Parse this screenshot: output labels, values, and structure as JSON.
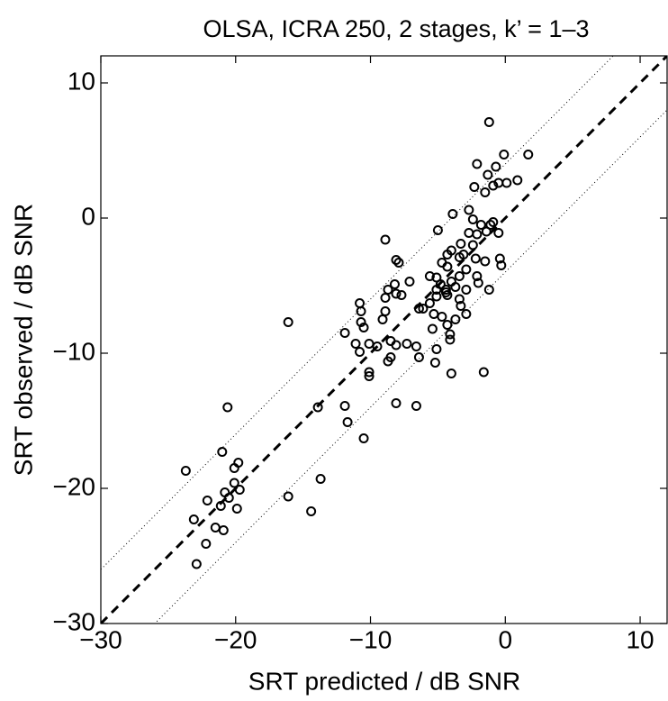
{
  "chart_data": {
    "type": "scatter",
    "title": "OLSA, ICRA 250, 2 stages, k’ = 1–3",
    "xlabel": "SRT predicted / dB SNR",
    "ylabel": "SRT observed / dB SNR",
    "color": "#000000",
    "xlim": [
      -30,
      12
    ],
    "ylim": [
      -30,
      12
    ],
    "xticks": [
      {
        "value": -30,
        "label": "−30"
      },
      {
        "value": -20,
        "label": "−20"
      },
      {
        "value": -10,
        "label": "−10"
      },
      0,
      10
    ],
    "yticks": [
      {
        "value": -30,
        "label": "−30"
      },
      {
        "value": -20,
        "label": "−20"
      },
      {
        "value": -10,
        "label": "−10"
      },
      0,
      10
    ],
    "reference_lines": [
      {
        "offset": 0,
        "style": "dashed"
      },
      {
        "offset": 4,
        "style": "dotted"
      },
      {
        "offset": -4,
        "style": "dotted"
      }
    ],
    "x": [
      -1.2,
      -0.1,
      1.7,
      -2.1,
      -0.7,
      -1.3,
      -2.3,
      -1.5,
      -0.9,
      -0.5,
      0.1,
      0.9,
      -2.7,
      -3.9,
      -2.4,
      -0.9,
      -1.1,
      -1.8,
      -1.4,
      -2.7,
      -5.0,
      -0.5,
      -2.1,
      -3.3,
      -2.4,
      -4.0,
      -3.1,
      -4.3,
      -3.4,
      -0.4,
      -0.3,
      -2.2,
      -1.5,
      -4.7,
      -4.3,
      -2.9,
      -8.1,
      -7.9,
      -8.9,
      -5.6,
      -5.1,
      -3.4,
      -2.1,
      -4.0,
      -3.7,
      -4.8,
      -5.1,
      -4.4,
      -4.3,
      -4.4,
      -3.4,
      -5.1,
      -1.2,
      -2.0,
      -2.9,
      -7.1,
      -8.2,
      -8.7,
      -8.9,
      -7.7,
      -8.1,
      -5.6,
      -6.1,
      -6.4,
      -10.8,
      -10.7,
      -8.9,
      -9.1,
      -5.3,
      -4.7,
      -2.9,
      -3.3,
      -10.7,
      -10.5,
      -4.3,
      -3.7,
      -5.4,
      -11.9,
      -4.1,
      -4.1,
      -16.1,
      -8.5,
      -7.3,
      -6.6,
      -11.1,
      -10.1,
      -10.8,
      -9.5,
      -8.1,
      -5.1,
      -8.5,
      -8.7,
      -5.2,
      -6.4,
      -10.1,
      -10.1,
      -4.0,
      -1.6,
      -11.9,
      -8.1,
      -6.6,
      -13.9,
      -11.7,
      -10.5,
      -13.7,
      -23.7,
      -21.0,
      -20.1,
      -19.8,
      -20.6,
      -20.1,
      -19.7,
      -20.8,
      -20.5,
      -21.1,
      -19.9,
      -22.1,
      -16.1,
      -14.4,
      -23.1,
      -21.5,
      -20.9,
      -22.2,
      -22.9
    ],
    "values": [
      7.1,
      4.7,
      4.7,
      4.0,
      3.8,
      3.2,
      2.3,
      1.9,
      2.4,
      2.6,
      2.6,
      2.8,
      0.6,
      0.3,
      -0.1,
      -0.3,
      -0.5,
      -0.5,
      -1.0,
      -1.1,
      -0.9,
      -1.1,
      -1.2,
      -1.9,
      -2.0,
      -2.4,
      -2.7,
      -2.7,
      -2.9,
      -3.0,
      -3.5,
      -3.0,
      -3.2,
      -3.3,
      -3.6,
      -3.8,
      -3.1,
      -3.3,
      -1.6,
      -4.3,
      -4.4,
      -4.3,
      -4.3,
      -4.7,
      -5.1,
      -4.9,
      -5.3,
      -5.3,
      -5.7,
      -5.5,
      -6.0,
      -5.8,
      -5.3,
      -4.8,
      -5.3,
      -4.7,
      -4.9,
      -5.3,
      -5.9,
      -5.7,
      -5.6,
      -6.3,
      -6.7,
      -6.7,
      -6.3,
      -6.9,
      -6.9,
      -7.5,
      -7.1,
      -7.3,
      -7.1,
      -6.5,
      -7.7,
      -8.1,
      -7.9,
      -7.5,
      -8.2,
      -8.5,
      -8.6,
      -9.0,
      -7.7,
      -9.1,
      -9.3,
      -9.5,
      -9.3,
      -9.3,
      -9.9,
      -9.5,
      -9.4,
      -9.7,
      -10.3,
      -10.6,
      -10.7,
      -10.3,
      -11.4,
      -11.7,
      -11.5,
      -11.4,
      -13.9,
      -13.7,
      -13.9,
      -14.0,
      -15.1,
      -16.3,
      -19.3,
      -18.7,
      -17.3,
      -18.5,
      -18.1,
      -14.0,
      -19.6,
      -20.1,
      -20.3,
      -20.7,
      -21.3,
      -21.5,
      -20.9,
      -20.6,
      -21.7,
      -22.3,
      -22.9,
      -23.1,
      -24.1,
      -25.6
    ]
  }
}
